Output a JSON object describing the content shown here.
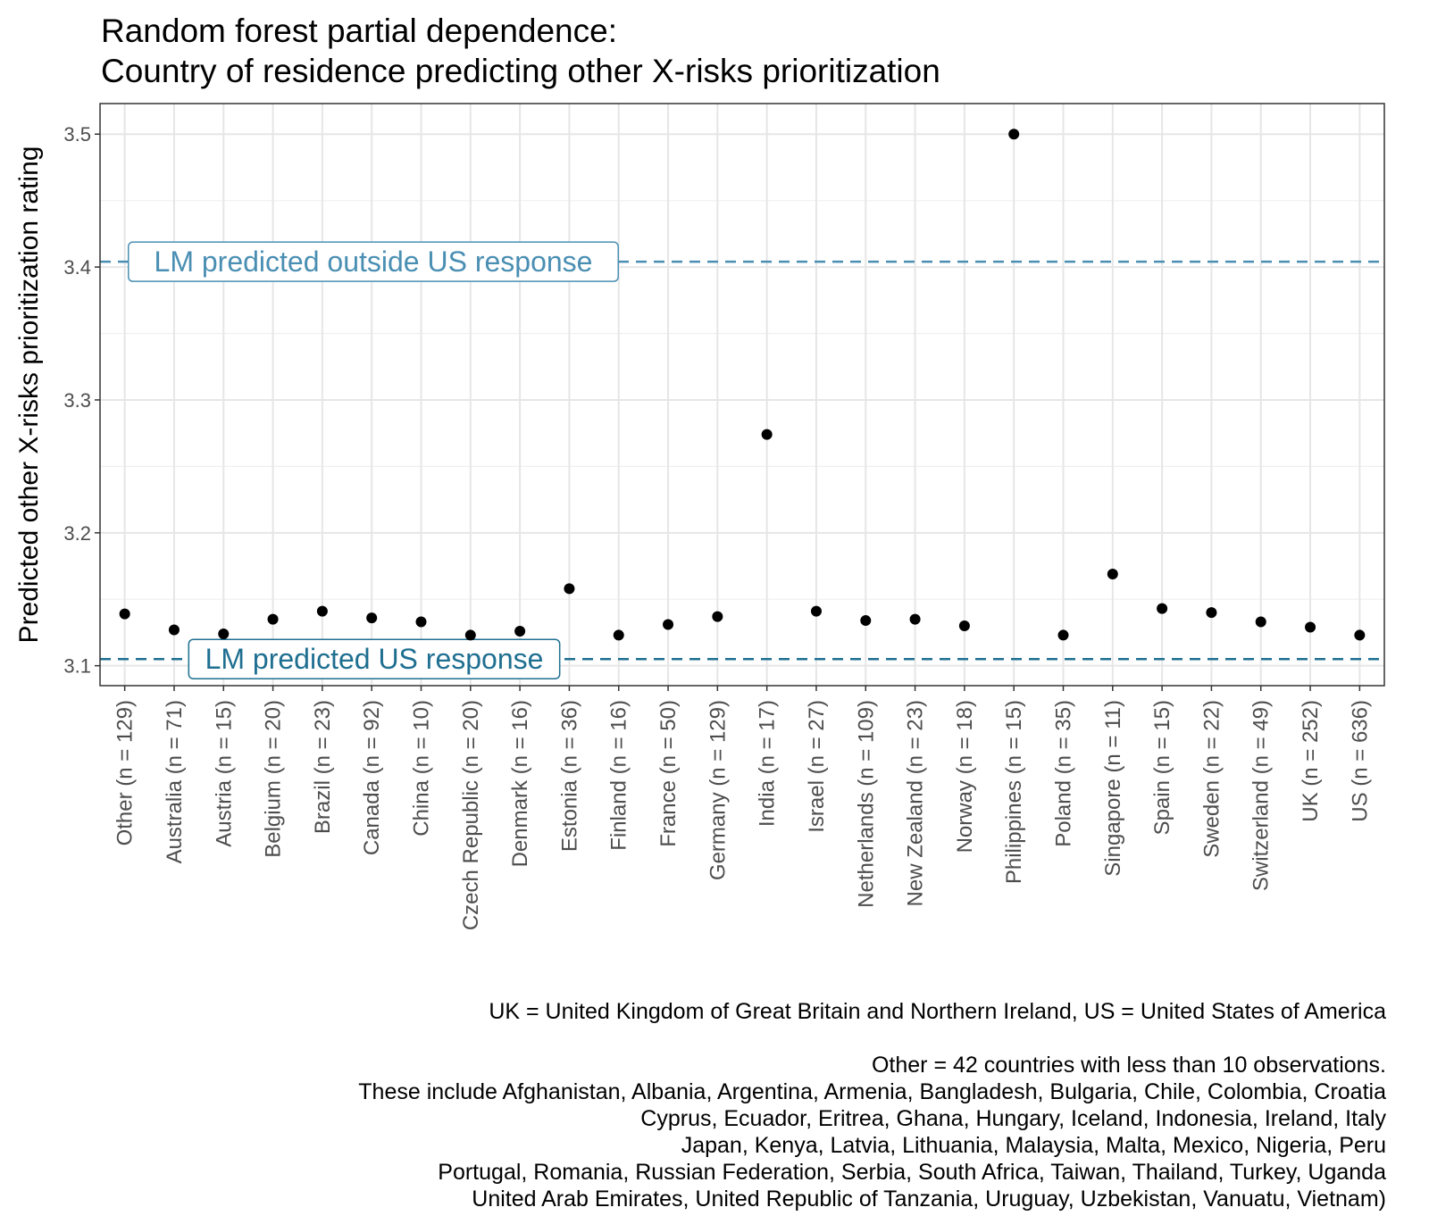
{
  "chart_data": {
    "type": "scatter",
    "title": [
      "Random forest partial dependence:",
      "Country of residence predicting other X-risks prioritization"
    ],
    "xlabel": "",
    "ylabel": "Predicted other X-risks prioritization rating",
    "ylim": [
      3.085,
      3.523
    ],
    "yticks": [
      3.1,
      3.2,
      3.3,
      3.4,
      3.5
    ],
    "grid": true,
    "categories": [
      "Other (n = 129)",
      "Australia (n = 71)",
      "Austria (n = 15)",
      "Belgium (n = 20)",
      "Brazil (n = 23)",
      "Canada (n = 92)",
      "China (n = 10)",
      "Czech Republic (n = 20)",
      "Denmark (n = 16)",
      "Estonia (n = 36)",
      "Finland (n = 16)",
      "France (n = 50)",
      "Germany (n = 129)",
      "India (n = 17)",
      "Israel (n = 27)",
      "Netherlands (n = 109)",
      "New Zealand (n = 23)",
      "Norway (n = 18)",
      "Philippines (n = 15)",
      "Poland (n = 35)",
      "Singapore (n = 11)",
      "Spain (n = 15)",
      "Sweden (n = 22)",
      "Switzerland (n = 49)",
      "UK (n = 252)",
      "US (n = 636)"
    ],
    "values": [
      3.139,
      3.127,
      3.124,
      3.135,
      3.141,
      3.136,
      3.133,
      3.123,
      3.126,
      3.158,
      3.123,
      3.131,
      3.137,
      3.274,
      3.141,
      3.134,
      3.135,
      3.13,
      3.5,
      3.123,
      3.169,
      3.143,
      3.14,
      3.133,
      3.129,
      3.123
    ],
    "reference_lines": [
      {
        "label": "LM predicted outside US response",
        "value": 3.404,
        "color": "#4a8fb3"
      },
      {
        "label": "LM predicted US response",
        "value": 3.105,
        "color": "#1f6f91"
      }
    ],
    "caption": [
      "UK = United Kingdom of Great Britain and Northern Ireland, US = United States of America",
      "",
      "Other = 42 countries with less than 10 observations.",
      "These include Afghanistan, Albania, Argentina, Armenia, Bangladesh, Bulgaria, Chile, Colombia, Croatia",
      "Cyprus, Ecuador, Eritrea, Ghana, Hungary, Iceland, Indonesia, Ireland, Italy",
      "Japan, Kenya, Latvia, Lithuania, Malaysia, Malta, Mexico, Nigeria, Peru",
      "Portugal, Romania, Russian Federation, Serbia, South Africa, Taiwan, Thailand, Turkey, Uganda",
      "United Arab Emirates, United Republic of Tanzania, Uruguay, Uzbekistan, Vanuatu, Vietnam)"
    ]
  }
}
